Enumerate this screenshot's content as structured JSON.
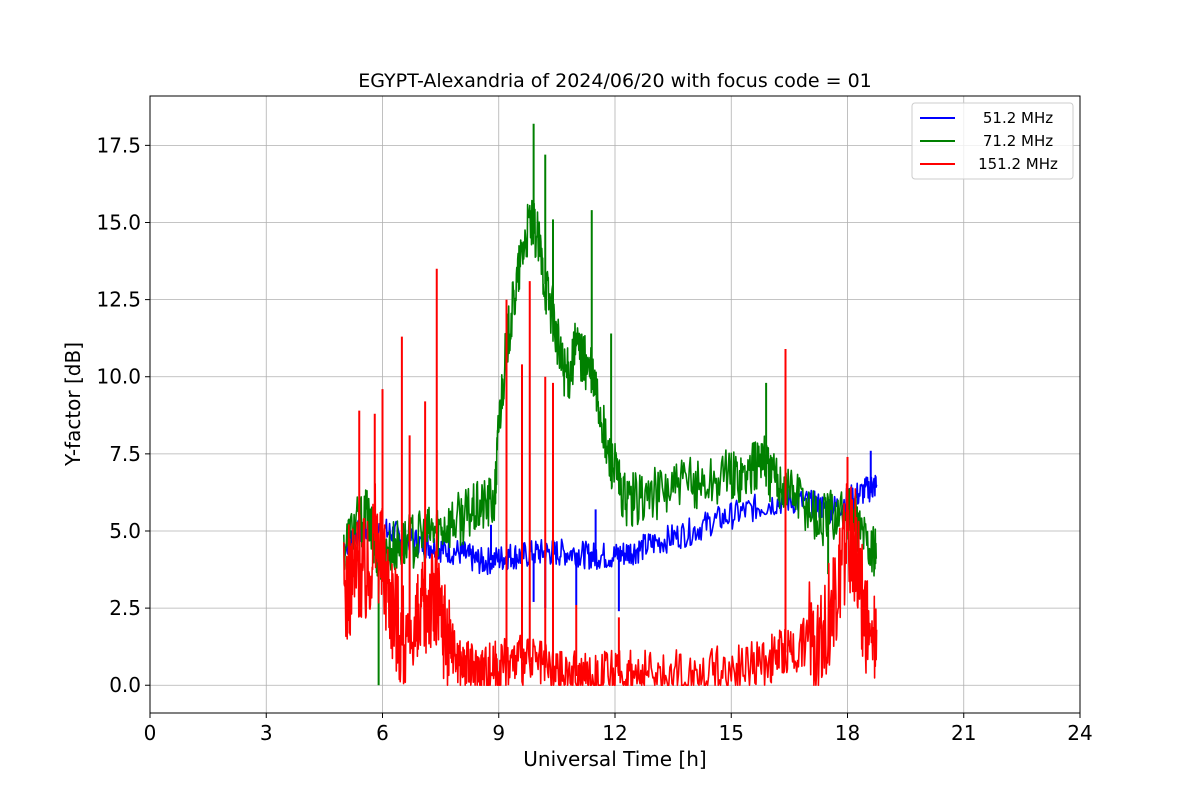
{
  "chart_data": {
    "type": "line",
    "title": "EGYPT-Alexandria of 2024/06/20 with focus code = 01",
    "xlabel": "Universal Time [h]",
    "ylabel": "Y-factor [dB]",
    "xlim": [
      0,
      24
    ],
    "ylim": [
      -0.9,
      19.1
    ],
    "xticks": [
      0,
      3,
      6,
      9,
      12,
      15,
      18,
      21,
      24
    ],
    "xtick_labels": [
      "0",
      "3",
      "6",
      "9",
      "12",
      "15",
      "18",
      "21",
      "24"
    ],
    "yticks": [
      0.0,
      2.5,
      5.0,
      7.5,
      10.0,
      12.5,
      15.0,
      17.5
    ],
    "ytick_labels": [
      "0.0",
      "2.5",
      "5.0",
      "7.5",
      "10.0",
      "12.5",
      "15.0",
      "17.5"
    ],
    "grid": true,
    "legend_position": "top-right",
    "series": [
      {
        "name": "51.2 MHz",
        "color": "#0000ff",
        "x": [
          5.0,
          5.3,
          5.6,
          6.0,
          6.3,
          6.6,
          7.0,
          7.3,
          7.6,
          8.0,
          8.3,
          8.6,
          9.0,
          9.3,
          9.6,
          10.0,
          10.3,
          10.6,
          11.0,
          11.3,
          11.6,
          12.0,
          12.3,
          12.6,
          13.0,
          13.5,
          14.0,
          14.5,
          15.0,
          15.5,
          16.0,
          16.5,
          17.0,
          17.3,
          17.6,
          18.0,
          18.3,
          18.6,
          18.75
        ],
        "y": [
          4.5,
          4.9,
          5.0,
          5.0,
          4.9,
          4.8,
          4.6,
          4.5,
          4.4,
          4.3,
          4.1,
          4.0,
          4.1,
          4.2,
          4.2,
          4.3,
          4.3,
          4.3,
          4.3,
          4.2,
          4.2,
          4.2,
          4.3,
          4.4,
          4.6,
          4.8,
          5.0,
          5.3,
          5.5,
          5.7,
          5.9,
          6.0,
          5.9,
          5.8,
          5.7,
          6.0,
          6.2,
          6.4,
          6.5
        ],
        "spikes": [
          [
            9.9,
            2.7
          ],
          [
            10.2,
            2.5
          ],
          [
            11.0,
            2.6
          ],
          [
            12.1,
            2.4
          ],
          [
            11.5,
            5.7
          ],
          [
            8.8,
            5.2
          ],
          [
            18.6,
            7.6
          ]
        ]
      },
      {
        "name": "71.2 MHz",
        "color": "#008000",
        "x": [
          5.0,
          5.3,
          5.6,
          5.8,
          6.0,
          6.3,
          6.6,
          7.0,
          7.3,
          7.6,
          8.0,
          8.3,
          8.6,
          8.9,
          9.0,
          9.2,
          9.4,
          9.6,
          9.8,
          10.0,
          10.2,
          10.4,
          10.6,
          10.8,
          11.0,
          11.2,
          11.4,
          11.6,
          11.8,
          12.0,
          12.2,
          12.5,
          13.0,
          13.5,
          14.0,
          14.5,
          15.0,
          15.3,
          15.6,
          15.8,
          16.0,
          16.3,
          16.6,
          17.0,
          17.3,
          17.6,
          18.0,
          18.3,
          18.6,
          18.75
        ],
        "y": [
          4.5,
          5.2,
          5.5,
          4.5,
          4.2,
          4.5,
          4.6,
          4.8,
          5.0,
          5.2,
          5.4,
          5.6,
          5.8,
          6.0,
          8.5,
          11.0,
          12.5,
          14.0,
          15.0,
          14.5,
          13.0,
          12.0,
          10.5,
          10.0,
          11.0,
          10.5,
          10.0,
          9.0,
          7.5,
          7.0,
          6.0,
          6.0,
          6.2,
          6.4,
          6.5,
          6.6,
          6.8,
          6.8,
          7.0,
          7.6,
          6.8,
          6.6,
          6.3,
          5.8,
          5.3,
          5.6,
          5.6,
          5.2,
          4.5,
          4.1
        ],
        "spikes": [
          [
            9.9,
            18.2
          ],
          [
            10.2,
            17.2
          ],
          [
            11.4,
            15.4
          ],
          [
            10.4,
            15.1
          ],
          [
            15.9,
            9.8
          ],
          [
            11.9,
            11.4
          ],
          [
            5.9,
            0.0
          ],
          [
            17.5,
            3.6
          ]
        ]
      },
      {
        "name": "151.2 MHz",
        "color": "#ff0000",
        "x": [
          5.0,
          5.2,
          5.4,
          5.6,
          5.8,
          6.0,
          6.2,
          6.4,
          6.6,
          6.8,
          7.0,
          7.2,
          7.4,
          7.6,
          7.8,
          8.0,
          8.2,
          8.4,
          8.6,
          8.8,
          9.0,
          9.3,
          9.6,
          10.0,
          10.3,
          10.6,
          11.0,
          11.3,
          11.6,
          12.0,
          12.3,
          12.6,
          13.0,
          13.5,
          14.0,
          14.5,
          15.0,
          15.5,
          16.0,
          16.3,
          16.6,
          17.0,
          17.3,
          17.6,
          17.8,
          18.0,
          18.2,
          18.4,
          18.6,
          18.75
        ],
        "y": [
          3.0,
          3.5,
          4.0,
          3.5,
          5.0,
          4.0,
          3.0,
          2.0,
          1.5,
          1.5,
          2.0,
          3.0,
          2.5,
          2.0,
          1.2,
          0.8,
          0.6,
          0.5,
          0.6,
          0.6,
          0.7,
          0.8,
          0.8,
          0.7,
          0.5,
          0.4,
          0.3,
          0.3,
          0.3,
          0.3,
          0.3,
          0.3,
          0.3,
          0.3,
          0.4,
          0.4,
          0.5,
          0.6,
          0.8,
          1.0,
          1.2,
          1.5,
          1.8,
          2.5,
          3.5,
          5.0,
          4.5,
          2.5,
          1.2,
          1.8
        ],
        "spikes": [
          [
            5.4,
            8.9
          ],
          [
            5.8,
            8.8
          ],
          [
            6.0,
            9.6
          ],
          [
            6.5,
            11.3
          ],
          [
            6.7,
            8.1
          ],
          [
            7.1,
            9.2
          ],
          [
            7.4,
            13.5
          ],
          [
            9.2,
            12.5
          ],
          [
            9.6,
            10.4
          ],
          [
            9.8,
            13.1
          ],
          [
            10.2,
            10.0
          ],
          [
            10.4,
            9.8
          ],
          [
            11.0,
            2.6
          ],
          [
            12.1,
            2.2
          ],
          [
            16.4,
            10.9
          ],
          [
            18.0,
            7.4
          ]
        ]
      }
    ]
  }
}
